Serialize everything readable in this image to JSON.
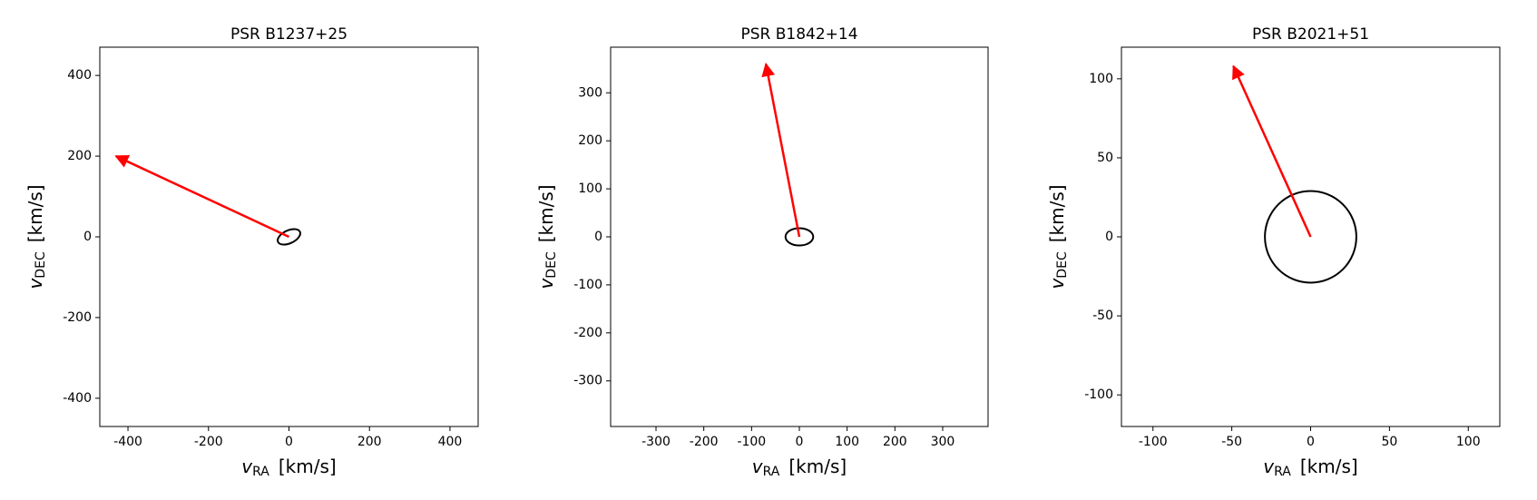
{
  "chart_data": [
    {
      "type": "vector",
      "title": "PSR B1237+25",
      "xlabel": {
        "symbol": "v",
        "subscript": "RA",
        "unit": "[km/s]"
      },
      "ylabel": {
        "symbol": "v",
        "subscript": "DEC",
        "unit": "[km/s]"
      },
      "xlim": [
        -470,
        470
      ],
      "ylim": [
        -470,
        470
      ],
      "xticks": [
        -400,
        -200,
        0,
        200,
        400
      ],
      "yticks": [
        -400,
        -200,
        0,
        200,
        400
      ],
      "arrow": {
        "x": -430,
        "y": 200,
        "color": "red"
      },
      "ellipse": {
        "a": 30,
        "b": 16,
        "angle": 25,
        "color": "black"
      }
    },
    {
      "type": "vector",
      "title": "PSR B1842+14",
      "xlabel": {
        "symbol": "v",
        "subscript": "RA",
        "unit": "[km/s]"
      },
      "ylabel": {
        "symbol": "v",
        "subscript": "DEC",
        "unit": "[km/s]"
      },
      "xlim": [
        -395,
        395
      ],
      "ylim": [
        -395,
        395
      ],
      "xticks": [
        -300,
        -200,
        -100,
        0,
        100,
        200,
        300
      ],
      "yticks": [
        -300,
        -200,
        -100,
        0,
        100,
        200,
        300
      ],
      "arrow": {
        "x": -70,
        "y": 360,
        "color": "red"
      },
      "ellipse": {
        "a": 29,
        "b": 18,
        "angle": 0,
        "color": "black"
      }
    },
    {
      "type": "vector",
      "title": "PSR B2021+51",
      "xlabel": {
        "symbol": "v",
        "subscript": "RA",
        "unit": "[km/s]"
      },
      "ylabel": {
        "symbol": "v",
        "subscript": "DEC",
        "unit": "[km/s]"
      },
      "xlim": [
        -120,
        120
      ],
      "ylim": [
        -120,
        120
      ],
      "xticks": [
        -100,
        -50,
        0,
        50,
        100
      ],
      "yticks": [
        -100,
        -50,
        0,
        50,
        100
      ],
      "arrow": {
        "x": -49,
        "y": 108,
        "color": "red"
      },
      "ellipse": {
        "a": 29,
        "b": 29,
        "angle": 0,
        "color": "black"
      }
    }
  ]
}
